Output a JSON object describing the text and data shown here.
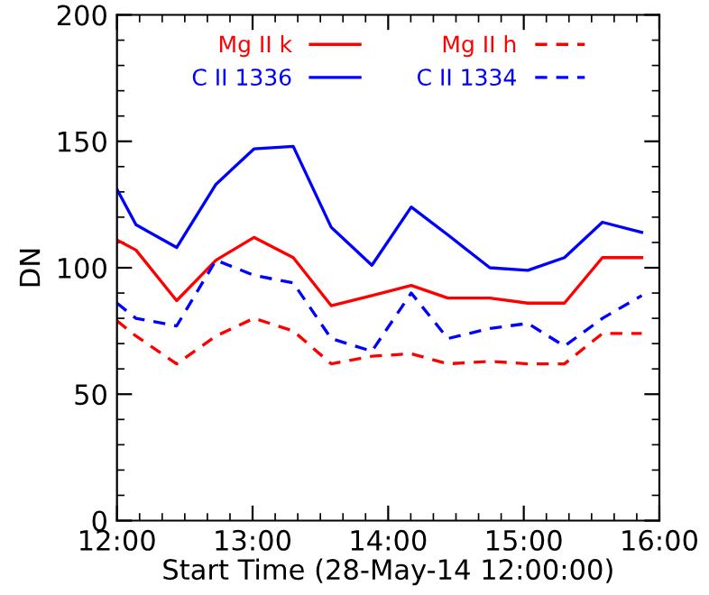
{
  "chart_data": {
    "type": "line",
    "xlabel": "Start Time (28-May-14 12:00:00)",
    "ylabel": "DN",
    "x": [
      12.0,
      12.14,
      12.44,
      12.73,
      13.01,
      13.3,
      13.58,
      13.88,
      14.17,
      14.44,
      14.75,
      15.03,
      15.3,
      15.58,
      15.87
    ],
    "series": [
      {
        "name": "Mg II k",
        "color": "#ff0000",
        "line_style": "solid",
        "values": [
          111,
          107,
          87,
          103,
          112,
          104,
          85,
          89,
          93,
          88,
          88,
          86,
          86,
          104,
          104
        ]
      },
      {
        "name": "Mg II h",
        "color": "#ff0000",
        "line_style": "dashed",
        "values": [
          79,
          73,
          62,
          73,
          80,
          75,
          62,
          65,
          66,
          62,
          63,
          62,
          62,
          74,
          74
        ]
      },
      {
        "name": "C II 1336",
        "color": "#0000ff",
        "line_style": "solid",
        "values": [
          131,
          117,
          108,
          133,
          147,
          148,
          116,
          101,
          124,
          113,
          100,
          99,
          104,
          118,
          114
        ]
      },
      {
        "name": "C II 1334",
        "color": "#0000ff",
        "line_style": "dashed",
        "values": [
          86,
          80,
          77,
          103,
          97,
          94,
          72,
          67,
          90,
          72,
          76,
          78,
          69,
          80,
          89
        ]
      }
    ],
    "xlim": [
      12,
      16
    ],
    "xticks": [
      {
        "value": 12,
        "label": "12:00"
      },
      {
        "value": 13,
        "label": "13:00"
      },
      {
        "value": 14,
        "label": "14:00"
      },
      {
        "value": 15,
        "label": "15:00"
      },
      {
        "value": 16,
        "label": "16:00"
      }
    ],
    "ylim": [
      0,
      200
    ],
    "yticks": [
      0,
      50,
      100,
      150,
      200
    ],
    "grid": false,
    "legend": "top",
    "marker": "none"
  }
}
